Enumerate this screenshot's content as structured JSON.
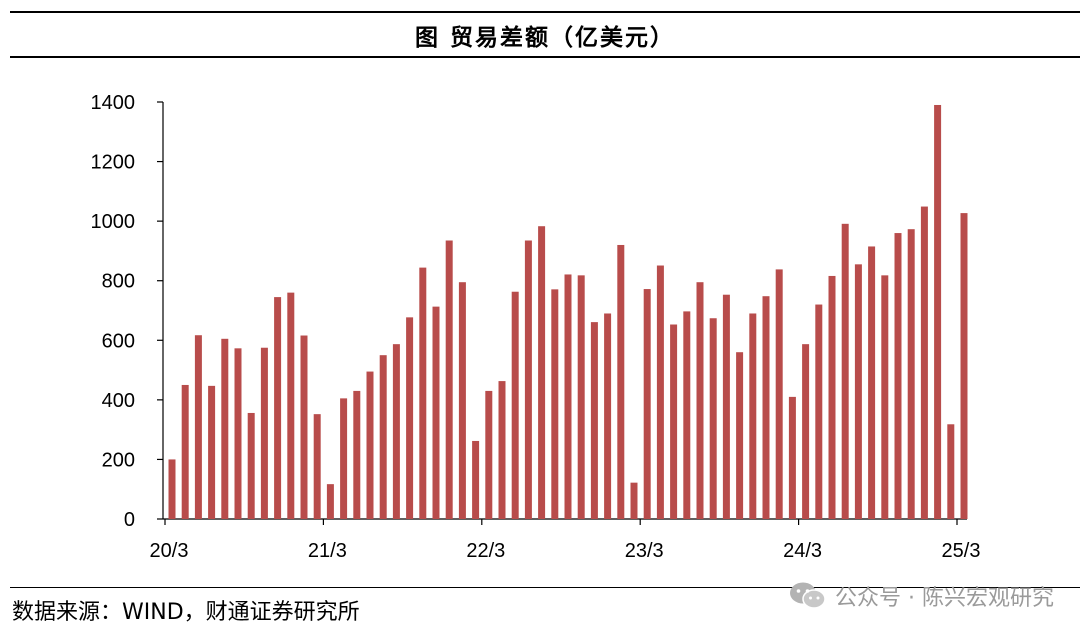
{
  "header": {
    "title": "图  贸易差额（亿美元）"
  },
  "chart_data": {
    "type": "bar",
    "title": "图  贸易差额（亿美元）",
    "unit": "亿美元",
    "xlabel": "",
    "ylabel": "",
    "ylim": [
      0,
      1400
    ],
    "y_ticks": [
      0,
      200,
      400,
      600,
      800,
      1000,
      1200,
      1400
    ],
    "x_tick_labels": [
      "20/3",
      "21/3",
      "22/3",
      "23/3",
      "24/3",
      "25/3"
    ],
    "x_tick_positions": [
      0,
      12,
      24,
      36,
      48,
      60
    ],
    "bar_color": "#B84C4B",
    "grid": false,
    "legend": "none",
    "categories": [
      "2020-03",
      "2020-04",
      "2020-05",
      "2020-06",
      "2020-07",
      "2020-08",
      "2020-09",
      "2020-10",
      "2020-11",
      "2020-12",
      "2021-01",
      "2021-02",
      "2021-03",
      "2021-04",
      "2021-05",
      "2021-06",
      "2021-07",
      "2021-08",
      "2021-09",
      "2021-10",
      "2021-11",
      "2021-12",
      "2022-01",
      "2022-02",
      "2022-03",
      "2022-04",
      "2022-05",
      "2022-06",
      "2022-07",
      "2022-08",
      "2022-09",
      "2022-10",
      "2022-11",
      "2022-12",
      "2023-01",
      "2023-02",
      "2023-03",
      "2023-04",
      "2023-05",
      "2023-06",
      "2023-07",
      "2023-08",
      "2023-09",
      "2023-10",
      "2023-11",
      "2023-12",
      "2024-01",
      "2024-02",
      "2024-03",
      "2024-04",
      "2024-05",
      "2024-06",
      "2024-07",
      "2024-08",
      "2024-09",
      "2024-10",
      "2024-11",
      "2024-12",
      "2025-01",
      "2025-02",
      "2025-03"
    ],
    "values": [
      200,
      450,
      617,
      447,
      605,
      573,
      356,
      575,
      745,
      760,
      616,
      352,
      117,
      405,
      430,
      495,
      550,
      587,
      677,
      844,
      713,
      935,
      795,
      262,
      430,
      463,
      763,
      935,
      983,
      771,
      821,
      818,
      661,
      690,
      920,
      122,
      772,
      851,
      653,
      697,
      795,
      674,
      753,
      560,
      690,
      748,
      838,
      410,
      587,
      720,
      816,
      991,
      855,
      915,
      818,
      960,
      973,
      1049,
      1390,
      318,
      1027
    ]
  },
  "footer": {
    "source": "数据来源：WIND，财通证券研究所",
    "watermark": "公众号 · 陈兴宏观研究"
  }
}
